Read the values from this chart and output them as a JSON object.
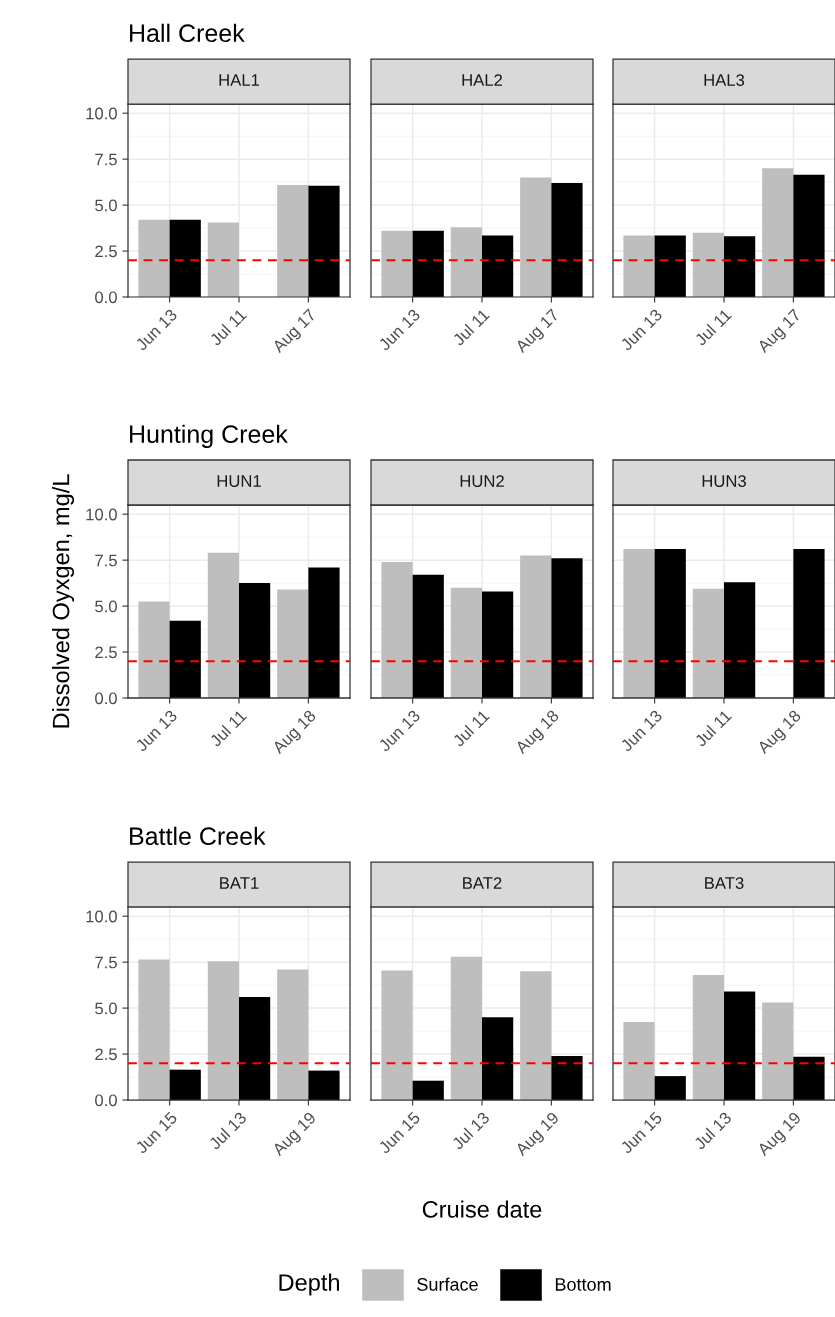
{
  "chart_data": [
    {
      "type": "bar",
      "title": "HAL1",
      "annotations": [
        "Hall Creek"
      ],
      "legend": "bottom",
      "legend_title": "Depth",
      "categories": [
        "Jun 13",
        "Jul 11",
        "Aug 17"
      ],
      "ylim": [
        0,
        10.5
      ],
      "yticks": [
        {
          "value": 0,
          "label": "0.0"
        },
        2.5,
        {
          "value": 5,
          "label": "5.0"
        },
        7.5,
        {
          "value": 10,
          "label": "10.0"
        }
      ],
      "grid": true,
      "ref_lines": [
        {
          "axis": "y",
          "value": 2,
          "color": "#ff0000",
          "line_style": "dashed"
        }
      ],
      "series": [
        {
          "name": "Surface",
          "color": "#bebebe",
          "values": [
            4.2,
            4.05,
            6.1
          ]
        },
        {
          "name": "Bottom",
          "color": "#000000",
          "values": [
            4.2,
            null,
            6.05
          ]
        }
      ]
    },
    {
      "type": "bar",
      "title": "HAL2",
      "categories": [
        "Jun 13",
        "Jul 11",
        "Aug 17"
      ],
      "ylim": [
        0,
        10.5
      ],
      "yticks": [
        0,
        2.5,
        5,
        7.5,
        10
      ],
      "tick_labels": "x",
      "grid": true,
      "ref_lines": [
        {
          "axis": "y",
          "value": 2,
          "color": "#ff0000",
          "line_style": "dashed"
        }
      ],
      "series": [
        {
          "color": "#bebebe",
          "values": [
            3.6,
            3.8,
            6.5
          ]
        },
        {
          "color": "#000000",
          "values": [
            3.6,
            3.35,
            6.2
          ]
        }
      ]
    },
    {
      "type": "bar",
      "title": "HAL3",
      "categories": [
        "Jun 13",
        "Jul 11",
        "Aug 17"
      ],
      "ylim": [
        0,
        10.5
      ],
      "yticks": [
        0,
        2.5,
        5,
        7.5,
        10
      ],
      "tick_labels": "x",
      "grid": true,
      "ref_lines": [
        {
          "axis": "y",
          "value": 2,
          "color": "#ff0000",
          "line_style": "dashed"
        }
      ],
      "series": [
        {
          "color": "#bebebe",
          "values": [
            3.35,
            3.5,
            7.0
          ]
        },
        {
          "color": "#000000",
          "values": [
            3.35,
            3.3,
            6.65
          ]
        }
      ]
    },
    {
      "type": "bar",
      "title": "HUN1",
      "annotations": [
        "Hunting Creek"
      ],
      "ylabel": "Dissolved Oyxgen, mg/L",
      "categories": [
        "Jun 13",
        "Jul 11",
        "Aug 18"
      ],
      "ylim": [
        0,
        10.5
      ],
      "yticks": [
        {
          "value": 0,
          "label": "0.0"
        },
        2.5,
        {
          "value": 5,
          "label": "5.0"
        },
        7.5,
        {
          "value": 10,
          "label": "10.0"
        }
      ],
      "grid": true,
      "ref_lines": [
        {
          "axis": "y",
          "value": 2,
          "color": "#ff0000",
          "line_style": "dashed"
        }
      ],
      "series": [
        {
          "color": "#bebebe",
          "values": [
            5.25,
            7.9,
            5.9
          ]
        },
        {
          "color": "#000000",
          "values": [
            4.2,
            6.25,
            7.1
          ]
        }
      ]
    },
    {
      "type": "bar",
      "title": "HUN2",
      "categories": [
        "Jun 13",
        "Jul 11",
        "Aug 18"
      ],
      "ylim": [
        0,
        10.5
      ],
      "yticks": [
        0,
        2.5,
        5,
        7.5,
        10
      ],
      "tick_labels": "x",
      "grid": true,
      "ref_lines": [
        {
          "axis": "y",
          "value": 2,
          "color": "#ff0000",
          "line_style": "dashed"
        }
      ],
      "series": [
        {
          "color": "#bebebe",
          "values": [
            7.4,
            6.0,
            7.75
          ]
        },
        {
          "color": "#000000",
          "values": [
            6.7,
            5.8,
            7.6
          ]
        }
      ]
    },
    {
      "type": "bar",
      "title": "HUN3",
      "categories": [
        "Jun 13",
        "Jul 11",
        "Aug 18"
      ],
      "ylim": [
        0,
        10.5
      ],
      "yticks": [
        0,
        2.5,
        5,
        7.5,
        10
      ],
      "tick_labels": "x",
      "grid": true,
      "ref_lines": [
        {
          "axis": "y",
          "value": 2,
          "color": "#ff0000",
          "line_style": "dashed"
        }
      ],
      "series": [
        {
          "color": "#bebebe",
          "values": [
            8.1,
            5.95,
            null
          ]
        },
        {
          "color": "#000000",
          "values": [
            8.1,
            6.3,
            8.1
          ]
        }
      ]
    },
    {
      "type": "bar",
      "title": "BAT1",
      "annotations": [
        "Battle Creek"
      ],
      "categories": [
        "Jun 15",
        "Jul 13",
        "Aug 19"
      ],
      "ylim": [
        0,
        10.5
      ],
      "yticks": [
        {
          "value": 0,
          "label": "0.0"
        },
        2.5,
        {
          "value": 5,
          "label": "5.0"
        },
        7.5,
        {
          "value": 10,
          "label": "10.0"
        }
      ],
      "grid": true,
      "ref_lines": [
        {
          "axis": "y",
          "value": 2,
          "color": "#ff0000",
          "line_style": "dashed"
        }
      ],
      "series": [
        {
          "color": "#bebebe",
          "values": [
            7.65,
            7.55,
            7.1
          ]
        },
        {
          "color": "#000000",
          "values": [
            1.65,
            5.6,
            1.6
          ]
        }
      ]
    },
    {
      "type": "bar",
      "title": "BAT2",
      "xlabel": "Cruise date",
      "categories": [
        "Jun 15",
        "Jul 13",
        "Aug 19"
      ],
      "ylim": [
        0,
        10.5
      ],
      "yticks": [
        0,
        2.5,
        5,
        7.5,
        10
      ],
      "tick_labels": "x",
      "grid": true,
      "ref_lines": [
        {
          "axis": "y",
          "value": 2,
          "color": "#ff0000",
          "line_style": "dashed"
        }
      ],
      "series": [
        {
          "color": "#bebebe",
          "values": [
            7.05,
            7.8,
            7.0
          ]
        },
        {
          "color": "#000000",
          "values": [
            1.05,
            4.5,
            2.4
          ]
        }
      ]
    },
    {
      "type": "bar",
      "title": "BAT3",
      "categories": [
        "Jun 15",
        "Jul 13",
        "Aug 19"
      ],
      "ylim": [
        0,
        10.5
      ],
      "yticks": [
        0,
        2.5,
        5,
        7.5,
        10
      ],
      "tick_labels": "x",
      "grid": true,
      "ref_lines": [
        {
          "axis": "y",
          "value": 2,
          "color": "#ff0000",
          "line_style": "dashed"
        }
      ],
      "series": [
        {
          "color": "#bebebe",
          "values": [
            4.25,
            6.8,
            5.3
          ]
        },
        {
          "color": "#000000",
          "values": [
            1.3,
            5.9,
            2.35
          ]
        }
      ]
    }
  ]
}
